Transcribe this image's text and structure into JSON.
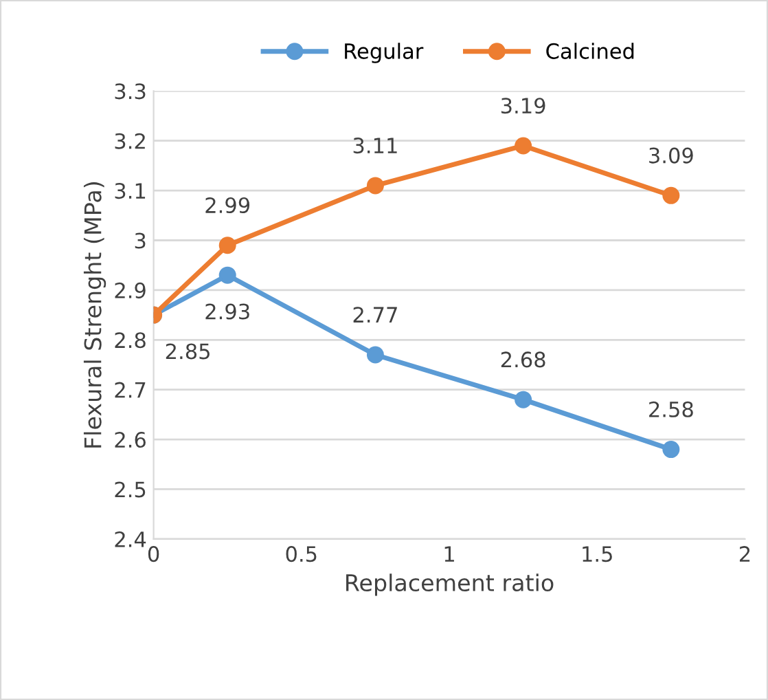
{
  "chart_data": {
    "type": "line",
    "xlabel": "Replacement ratio",
    "ylabel": "Flexural Strenght (MPa)",
    "x": [
      0,
      0.25,
      0.75,
      1.25,
      1.75
    ],
    "series": [
      {
        "name": "Regular",
        "color": "#5b9bd5",
        "values": [
          2.85,
          2.93,
          2.77,
          2.68,
          2.58
        ],
        "value_labels": [
          "2.85",
          "2.93",
          "2.77",
          "2.68",
          "2.58"
        ]
      },
      {
        "name": "Calcined",
        "color": "#ed7d31",
        "values": [
          2.85,
          2.99,
          3.11,
          3.19,
          3.09
        ],
        "value_labels": [
          null,
          "2.99",
          "3.11",
          "3.19",
          "3.09"
        ]
      }
    ],
    "xlim": [
      0,
      2
    ],
    "xticks": [
      0,
      0.5,
      1,
      1.5,
      2
    ],
    "ylim": [
      2.4,
      3.3
    ],
    "yticks": [
      2.4,
      2.5,
      2.6,
      2.7,
      2.8,
      2.9,
      3,
      3.1,
      3.2,
      3.3
    ],
    "grid": "y",
    "legend": "top",
    "marker": "circle",
    "line_style": "solid"
  }
}
